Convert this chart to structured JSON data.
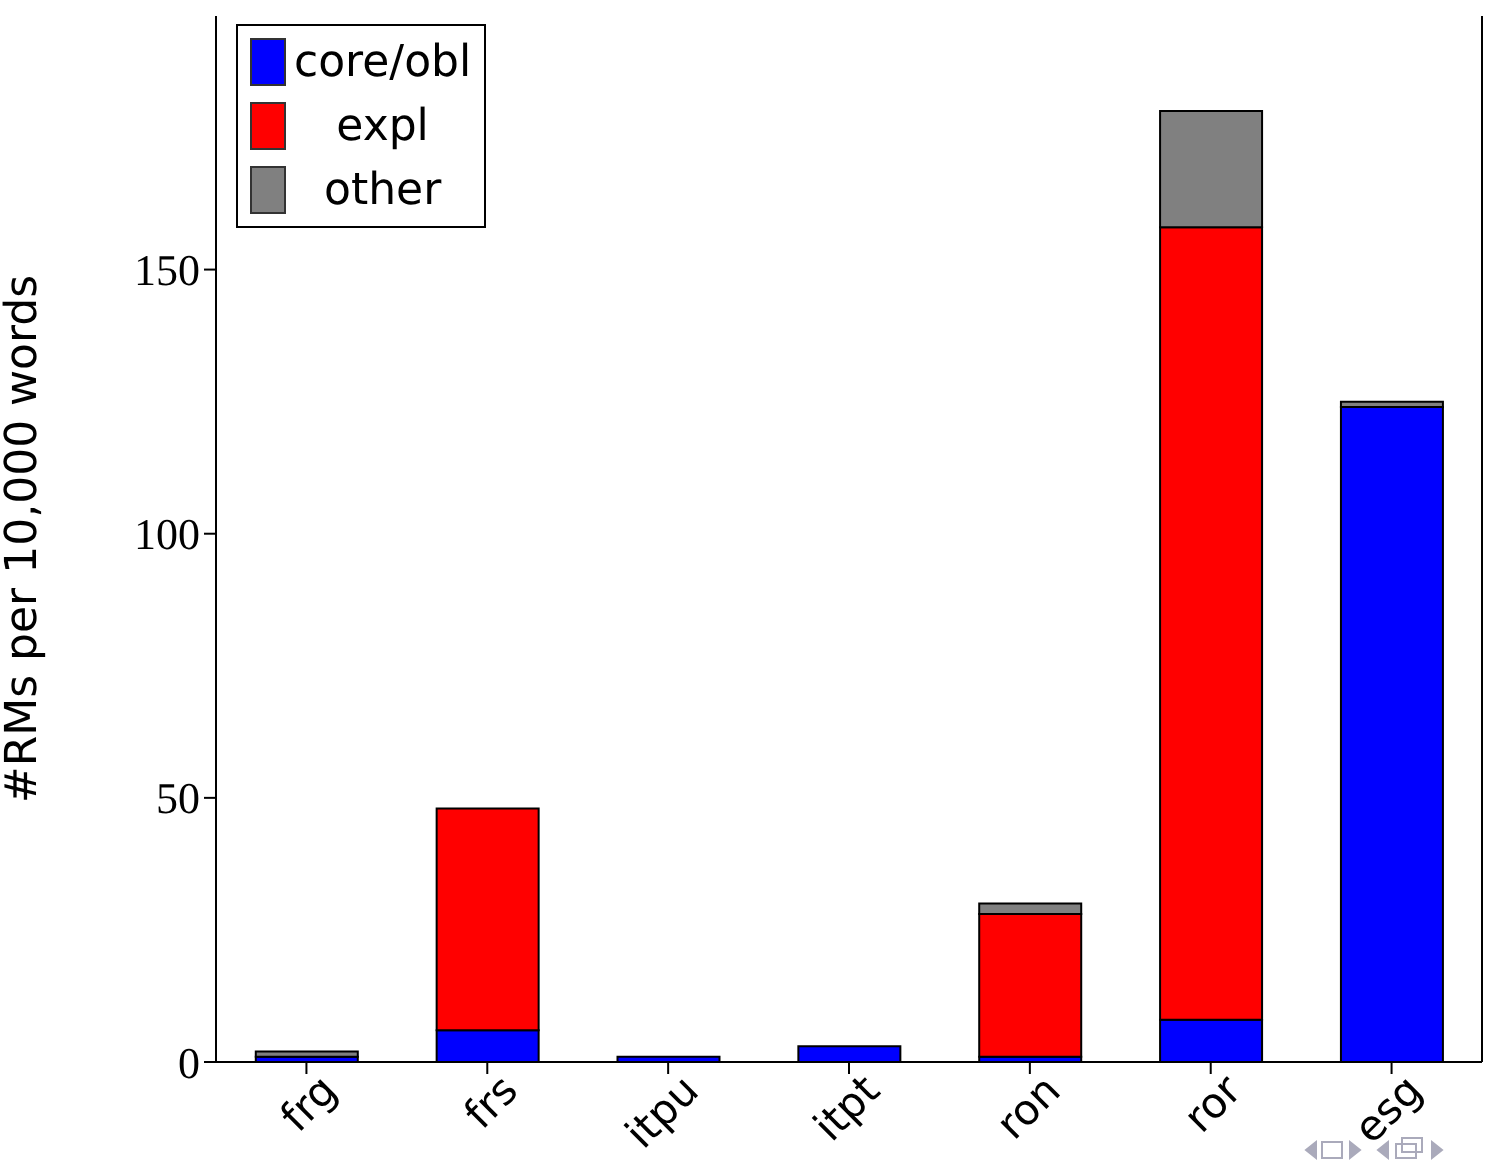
{
  "chart_data": {
    "type": "bar",
    "stacked": true,
    "ylabel": "#RMs per 10,000 words",
    "categories": [
      "frg",
      "frs",
      "itpu",
      "itpt",
      "ron",
      "ror",
      "esg"
    ],
    "series": [
      {
        "name": "core/obl",
        "color": "#0000ff",
        "values": [
          1,
          6,
          1,
          3,
          1,
          8,
          124
        ]
      },
      {
        "name": "expl",
        "color": "#ff0000",
        "values": [
          0,
          42,
          0,
          0,
          27,
          150,
          0
        ]
      },
      {
        "name": "other",
        "color": "#808080",
        "values": [
          1,
          0,
          0,
          0,
          2,
          22,
          1
        ]
      }
    ],
    "ylim": [
      0,
      198
    ],
    "yticks": [
      0,
      50,
      100,
      150
    ],
    "legend": "top left"
  }
}
